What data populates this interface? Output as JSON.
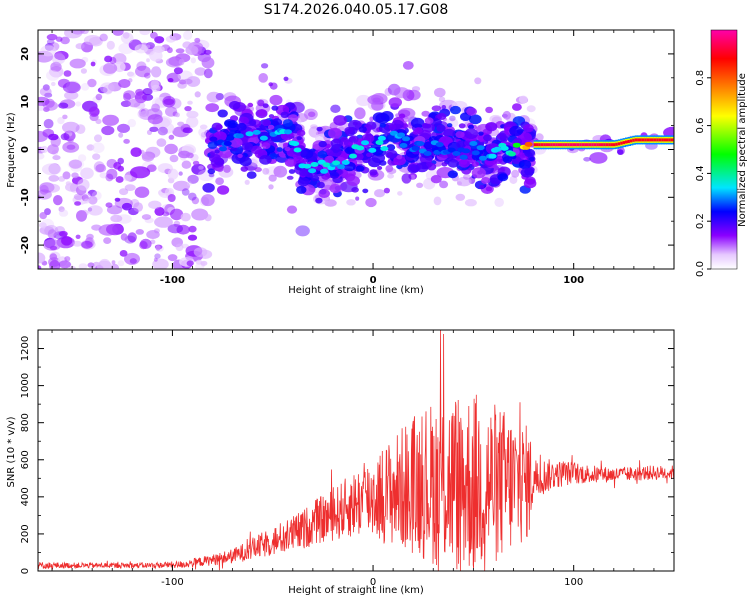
{
  "chart_data": [
    {
      "type": "heatmap",
      "title": "S174.2026.040.05.17.G08",
      "xlabel": "Height of straight line (km)",
      "ylabel": "Frequency (Hz)",
      "xlim": [
        -167,
        150
      ],
      "ylim": [
        -25,
        25
      ],
      "xticks": [
        -100,
        0,
        100
      ],
      "xtick_labels": [
        "-100",
        "0",
        "100"
      ],
      "yticks": [
        -20,
        -10,
        0,
        10,
        20
      ],
      "ytick_labels": [
        "-20",
        "-10",
        "0",
        "10",
        "20"
      ],
      "colorbar": {
        "label": "Normalized spectral amplitude",
        "range": [
          0,
          1
        ],
        "ticks": [
          0.0,
          0.2,
          0.4,
          0.6,
          0.8
        ],
        "tick_labels": [
          "0.0",
          "0.2",
          "0.4",
          "0.6",
          "0.8"
        ],
        "colors": [
          "#ffffff",
          "#8a00ff",
          "#0000ff",
          "#00e5ff",
          "#00ff00",
          "#ffff00",
          "#ff8000",
          "#ff0000",
          "#ff00aa"
        ]
      },
      "ridge": {
        "x": [
          -82,
          -70,
          -62,
          -50,
          -42,
          -35,
          -28,
          -20,
          -10,
          0,
          10,
          20,
          30,
          40,
          50,
          60,
          70,
          80,
          90,
          100,
          110,
          120,
          130,
          140,
          150
        ],
        "frequency": [
          0,
          2,
          3,
          4,
          3,
          -3,
          -4,
          -3,
          -1,
          1,
          2,
          1,
          1,
          0,
          -1,
          -1,
          0,
          1,
          1,
          1,
          1,
          1,
          2,
          2,
          2
        ],
        "amplitude": [
          0.18,
          0.25,
          0.28,
          0.28,
          0.3,
          0.3,
          0.32,
          0.3,
          0.3,
          0.32,
          0.3,
          0.25,
          0.25,
          0.22,
          0.25,
          0.3,
          0.35,
          0.9,
          0.95,
          0.95,
          0.95,
          0.9,
          0.9,
          0.9,
          0.9
        ]
      }
    },
    {
      "type": "line",
      "xlabel": "Height of straight line (km)",
      "ylabel": "SNR (10 * v/v)",
      "xlim": [
        -167,
        150
      ],
      "ylim": [
        0,
        1300
      ],
      "xticks": [
        -100,
        0,
        100
      ],
      "xtick_labels": [
        "-100",
        "0",
        "100"
      ],
      "yticks": [
        0,
        200,
        400,
        600,
        800,
        1000,
        1200
      ],
      "ytick_labels": [
        "0",
        "200",
        "400",
        "600",
        "800",
        "1000",
        "1200"
      ],
      "line_color": "#ee2e2e",
      "series": [
        {
          "name": "SNR",
          "x": [
            -167,
            -150,
            -130,
            -110,
            -95,
            -80,
            -70,
            -60,
            -50,
            -40,
            -35,
            -30,
            -20,
            -10,
            0,
            10,
            20,
            30,
            40,
            50,
            60,
            70,
            78,
            80,
            90,
            100,
            110,
            120,
            130,
            140,
            150
          ],
          "mean": [
            30,
            30,
            30,
            30,
            35,
            60,
            80,
            120,
            160,
            200,
            220,
            260,
            300,
            360,
            400,
            430,
            470,
            480,
            480,
            480,
            470,
            470,
            480,
            500,
            520,
            530,
            520,
            520,
            525,
            530,
            530
          ],
          "spread": [
            20,
            15,
            15,
            15,
            20,
            30,
            40,
            60,
            80,
            100,
            110,
            120,
            140,
            180,
            230,
            300,
            380,
            450,
            500,
            500,
            450,
            380,
            300,
            120,
            80,
            60,
            50,
            40,
            40,
            40,
            40
          ]
        }
      ]
    }
  ]
}
